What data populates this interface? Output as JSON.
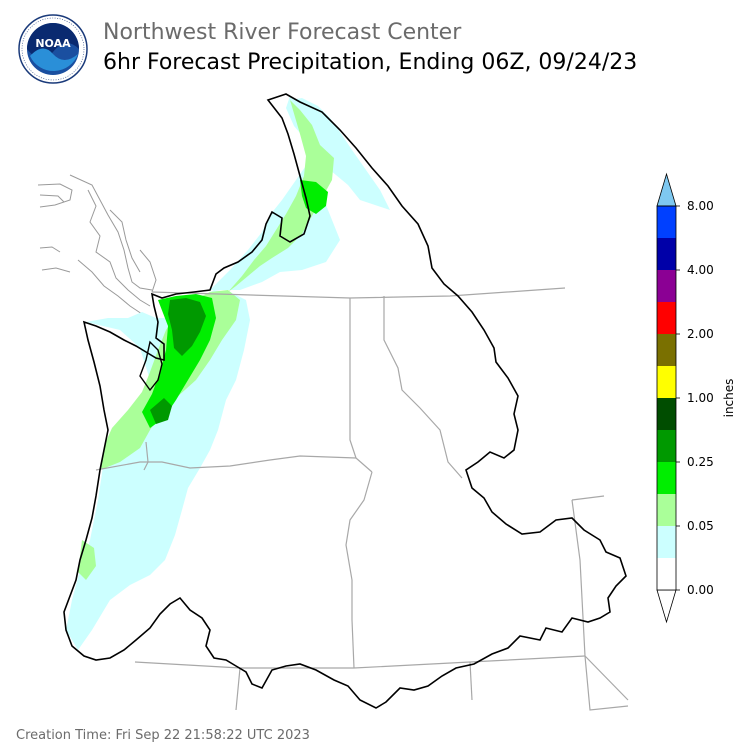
{
  "header": {
    "title": "Northwest River Forecast Center",
    "subtitle": "6hr Forecast Precipitation, Ending 06Z, 09/24/23",
    "logo_text": "NOAA"
  },
  "colorbar": {
    "unit_label": "inches",
    "tick_labels": [
      "0.00",
      "0.05",
      "0.25",
      "1.00",
      "2.00",
      "4.00",
      "8.00"
    ],
    "colors": [
      "#ffffff",
      "#ccffff",
      "#aaff99",
      "#00ee00",
      "#009900",
      "#004d00",
      "#ffff00",
      "#7a7000",
      "#ff0000",
      "#8b0094",
      "#0000a8",
      "#0040ff",
      "#7ec8f0"
    ]
  },
  "footer": {
    "creation_time": "Creation Time: Fri Sep 22 21:58:22 UTC 2023"
  }
}
